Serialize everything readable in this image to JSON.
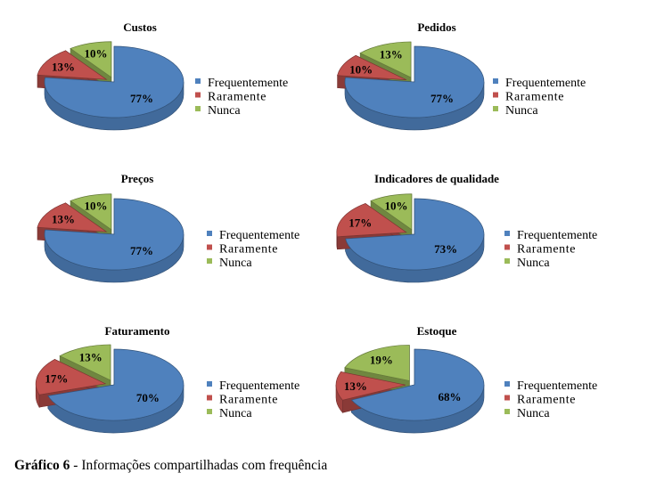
{
  "legend_colors": {
    "Frequentemente": "#4f81bd",
    "Raramente": "#c0504d",
    "Nunca": "#9bbb59"
  },
  "chart_data": [
    {
      "type": "pie",
      "title": "Custos",
      "series": [
        {
          "values": [
            77,
            13,
            10
          ]
        }
      ],
      "categories": [
        "Frequentemente",
        "Raramente",
        "Nunca"
      ],
      "data_labels": [
        "77%",
        "13%",
        "10%"
      ],
      "legend_position": "right"
    },
    {
      "type": "pie",
      "title": "Pedidos",
      "series": [
        {
          "values": [
            77,
            10,
            13
          ]
        }
      ],
      "categories": [
        "Frequentemente",
        "Raramente",
        "Nunca"
      ],
      "data_labels": [
        "77%",
        "10%",
        "13%"
      ],
      "legend_position": "right"
    },
    {
      "type": "pie",
      "title": "Preços",
      "series": [
        {
          "values": [
            77,
            13,
            10
          ]
        }
      ],
      "categories": [
        "Frequentemente",
        "Raramente",
        "Nunca"
      ],
      "data_labels": [
        "77%",
        "13%",
        "10%"
      ],
      "legend_position": "right"
    },
    {
      "type": "pie",
      "title": "Indicadores de qualidade",
      "series": [
        {
          "values": [
            73,
            17,
            10
          ]
        }
      ],
      "categories": [
        "Frequentemente",
        "Raramente",
        "Nunca"
      ],
      "data_labels": [
        "73%",
        "17%",
        "10%"
      ],
      "legend_position": "right"
    },
    {
      "type": "pie",
      "title": "Faturamento",
      "series": [
        {
          "values": [
            70,
            17,
            13
          ]
        }
      ],
      "categories": [
        "Frequentemente",
        "Raramente",
        "Nunca"
      ],
      "data_labels": [
        "70%",
        "17%",
        "13%"
      ],
      "legend_position": "right"
    },
    {
      "type": "pie",
      "title": "Estoque",
      "series": [
        {
          "values": [
            68,
            13,
            19
          ]
        }
      ],
      "categories": [
        "Frequentemente",
        "Raramente",
        "Nunca"
      ],
      "data_labels": [
        "68%",
        "13%",
        "19%"
      ],
      "legend_position": "right"
    }
  ],
  "caption": {
    "lead": "Gráfico 6",
    "text": " - Informações compartilhadas com frequência"
  }
}
